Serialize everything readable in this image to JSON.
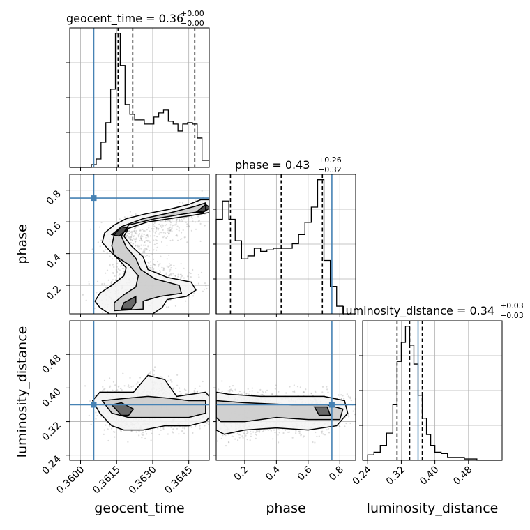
{
  "chart_data": {
    "type": "corner",
    "parameters": [
      "geocent_time",
      "phase",
      "luminosity_distance"
    ],
    "truths": {
      "geocent_time": 0.36055,
      "phase": 0.75,
      "luminosity_distance": 0.36
    },
    "truth_color": "#4682b4",
    "titles": [
      {
        "param": "geocent_time",
        "text": "geocent_time = 0.36",
        "upper": "+0.00",
        "lower": "−0.00"
      },
      {
        "param": "phase",
        "text": "phase = 0.43",
        "upper": "+0.26",
        "lower": "−0.32"
      },
      {
        "param": "luminosity_distance",
        "text": "luminosity_distance = 0.34",
        "upper": "+0.03",
        "lower": "−0.03"
      }
    ],
    "ranges": {
      "geocent_time": [
        0.35955,
        0.36535
      ],
      "phase": [
        0.02,
        0.9
      ],
      "luminosity_distance": [
        0.228,
        0.56
      ]
    },
    "ticks": {
      "geocent_time": [
        0.36,
        0.3615,
        0.363,
        0.3645
      ],
      "geocent_time_labels": [
        "0.3600",
        "0.3615",
        "0.3630",
        "0.3645"
      ],
      "phase": [
        0.2,
        0.4,
        0.6,
        0.8
      ],
      "phase_labels": [
        "0.2",
        "0.4",
        "0.6",
        "0.8"
      ],
      "luminosity_distance": [
        0.24,
        0.32,
        0.4,
        0.48
      ],
      "luminosity_distance_labels": [
        "0.24",
        "0.32",
        "0.40",
        "0.48"
      ]
    },
    "quantiles": {
      "geocent_time": [
        0.36156,
        0.36217,
        0.36475
      ],
      "phase": [
        0.11,
        0.43,
        0.69
      ],
      "luminosity_distance": [
        0.31,
        0.34,
        0.37
      ]
    },
    "histograms": {
      "geocent_time": {
        "edges": [
          0.35955,
          0.36045,
          0.36065,
          0.36085,
          0.36105,
          0.36125,
          0.36145,
          0.36165,
          0.36185,
          0.36205,
          0.36225,
          0.36245,
          0.36265,
          0.36285,
          0.36305,
          0.36325,
          0.36345,
          0.36365,
          0.36385,
          0.36405,
          0.36425,
          0.36445,
          0.36465,
          0.36485,
          0.36505,
          0.36535
        ],
        "counts": [
          0.0,
          0.02,
          0.06,
          0.18,
          0.32,
          0.56,
          0.96,
          0.73,
          0.45,
          0.38,
          0.34,
          0.34,
          0.31,
          0.31,
          0.36,
          0.39,
          0.41,
          0.33,
          0.31,
          0.26,
          0.31,
          0.32,
          0.31,
          0.21,
          0.05
        ]
      },
      "phase": {
        "edges": [
          0.02,
          0.06,
          0.1,
          0.14,
          0.18,
          0.22,
          0.26,
          0.3,
          0.34,
          0.38,
          0.42,
          0.46,
          0.5,
          0.54,
          0.58,
          0.62,
          0.66,
          0.7,
          0.74,
          0.78,
          0.82,
          0.86,
          0.9
        ],
        "counts": [
          0.62,
          0.74,
          0.62,
          0.48,
          0.36,
          0.38,
          0.43,
          0.41,
          0.42,
          0.43,
          0.43,
          0.43,
          0.46,
          0.52,
          0.6,
          0.7,
          0.88,
          0.35,
          0.18,
          0.05,
          0.0,
          0.0
        ]
      },
      "luminosity_distance": {
        "edges": [
          0.228,
          0.24,
          0.255,
          0.27,
          0.285,
          0.3,
          0.31,
          0.32,
          0.33,
          0.34,
          0.35,
          0.36,
          0.37,
          0.38,
          0.39,
          0.4,
          0.415,
          0.43,
          0.45,
          0.47,
          0.5,
          0.56
        ],
        "counts": [
          0.0,
          0.04,
          0.06,
          0.11,
          0.2,
          0.41,
          0.73,
          0.87,
          0.99,
          0.85,
          0.71,
          0.48,
          0.31,
          0.19,
          0.11,
          0.06,
          0.05,
          0.02,
          0.02,
          0.01,
          0.0
        ]
      }
    },
    "contours": {
      "phase_vs_geocent_time": {
        "outer": [
          [
            0.3612,
            0.02
          ],
          [
            0.3608,
            0.06
          ],
          [
            0.3606,
            0.1
          ],
          [
            0.3608,
            0.15
          ],
          [
            0.3613,
            0.2
          ],
          [
            0.3618,
            0.26
          ],
          [
            0.3619,
            0.31
          ],
          [
            0.3616,
            0.36
          ],
          [
            0.3612,
            0.42
          ],
          [
            0.3609,
            0.47
          ],
          [
            0.361,
            0.53
          ],
          [
            0.3614,
            0.58
          ],
          [
            0.3619,
            0.62
          ],
          [
            0.3627,
            0.65
          ],
          [
            0.3637,
            0.68
          ],
          [
            0.3645,
            0.71
          ],
          [
            0.365,
            0.74
          ],
          [
            0.3654,
            0.74
          ],
          [
            0.3654,
            0.66
          ],
          [
            0.3646,
            0.64
          ],
          [
            0.3637,
            0.62
          ],
          [
            0.3628,
            0.6
          ],
          [
            0.362,
            0.56
          ],
          [
            0.3618,
            0.51
          ],
          [
            0.3621,
            0.45
          ],
          [
            0.3626,
            0.38
          ],
          [
            0.3628,
            0.3
          ],
          [
            0.3636,
            0.25
          ],
          [
            0.3646,
            0.22
          ],
          [
            0.3648,
            0.17
          ],
          [
            0.3644,
            0.13
          ],
          [
            0.3636,
            0.11
          ],
          [
            0.3634,
            0.06
          ],
          [
            0.363,
            0.02
          ]
        ],
        "mid": [
          [
            0.3614,
            0.04
          ],
          [
            0.3614,
            0.09
          ],
          [
            0.3618,
            0.14
          ],
          [
            0.3623,
            0.19
          ],
          [
            0.3624,
            0.26
          ],
          [
            0.362,
            0.33
          ],
          [
            0.3614,
            0.39
          ],
          [
            0.3613,
            0.45
          ],
          [
            0.3614,
            0.52
          ],
          [
            0.3617,
            0.57
          ],
          [
            0.3626,
            0.62
          ],
          [
            0.3638,
            0.66
          ],
          [
            0.3648,
            0.7
          ],
          [
            0.3652,
            0.72
          ],
          [
            0.3652,
            0.67
          ],
          [
            0.3643,
            0.65
          ],
          [
            0.3631,
            0.62
          ],
          [
            0.362,
            0.58
          ],
          [
            0.3617,
            0.51
          ],
          [
            0.3619,
            0.44
          ],
          [
            0.3623,
            0.37
          ],
          [
            0.3625,
            0.3
          ],
          [
            0.3631,
            0.24
          ],
          [
            0.3641,
            0.2
          ],
          [
            0.3642,
            0.15
          ],
          [
            0.3633,
            0.13
          ],
          [
            0.3626,
            0.1
          ],
          [
            0.3626,
            0.05
          ]
        ],
        "inner": [
          [
            0.3617,
            0.05
          ],
          [
            0.3618,
            0.09
          ],
          [
            0.3623,
            0.13
          ],
          [
            0.3623,
            0.09
          ],
          [
            0.3621,
            0.05
          ]
        ],
        "inner2": [
          [
            0.3613,
            0.52
          ],
          [
            0.3617,
            0.57
          ],
          [
            0.362,
            0.56
          ],
          [
            0.3616,
            0.51
          ]
        ],
        "inner3": [
          [
            0.3648,
            0.66
          ],
          [
            0.3652,
            0.71
          ],
          [
            0.3654,
            0.69
          ],
          [
            0.3651,
            0.66
          ]
        ]
      },
      "luminosity_distance_vs_geocent_time": {
        "outer": [
          [
            0.3605,
            0.37
          ],
          [
            0.3608,
            0.34
          ],
          [
            0.3613,
            0.31
          ],
          [
            0.3618,
            0.3
          ],
          [
            0.3626,
            0.3
          ],
          [
            0.3635,
            0.31
          ],
          [
            0.3645,
            0.31
          ],
          [
            0.3652,
            0.32
          ],
          [
            0.3655,
            0.34
          ],
          [
            0.3655,
            0.37
          ],
          [
            0.3652,
            0.39
          ],
          [
            0.364,
            0.38
          ],
          [
            0.3635,
            0.42
          ],
          [
            0.3628,
            0.43
          ],
          [
            0.3622,
            0.39
          ],
          [
            0.3615,
            0.39
          ],
          [
            0.3608,
            0.39
          ]
        ],
        "mid": [
          [
            0.3609,
            0.37
          ],
          [
            0.3613,
            0.34
          ],
          [
            0.362,
            0.33
          ],
          [
            0.3633,
            0.33
          ],
          [
            0.3645,
            0.33
          ],
          [
            0.3652,
            0.34
          ],
          [
            0.3652,
            0.37
          ],
          [
            0.3645,
            0.37
          ],
          [
            0.3638,
            0.375
          ],
          [
            0.3628,
            0.38
          ],
          [
            0.3618,
            0.375
          ]
        ],
        "inner": [
          [
            0.3613,
            0.36
          ],
          [
            0.3617,
            0.335
          ],
          [
            0.362,
            0.335
          ],
          [
            0.3622,
            0.35
          ],
          [
            0.3617,
            0.365
          ]
        ]
      },
      "luminosity_distance_vs_phase": {
        "outer": [
          [
            0.02,
            0.39
          ],
          [
            0.1,
            0.385
          ],
          [
            0.3,
            0.38
          ],
          [
            0.5,
            0.38
          ],
          [
            0.7,
            0.38
          ],
          [
            0.83,
            0.37
          ],
          [
            0.85,
            0.34
          ],
          [
            0.78,
            0.31
          ],
          [
            0.6,
            0.3
          ],
          [
            0.4,
            0.305
          ],
          [
            0.2,
            0.3
          ],
          [
            0.07,
            0.29
          ],
          [
            0.02,
            0.3
          ]
        ],
        "mid": [
          [
            0.02,
            0.37
          ],
          [
            0.2,
            0.365
          ],
          [
            0.5,
            0.36
          ],
          [
            0.72,
            0.36
          ],
          [
            0.82,
            0.35
          ],
          [
            0.8,
            0.325
          ],
          [
            0.6,
            0.325
          ],
          [
            0.4,
            0.33
          ],
          [
            0.2,
            0.32
          ],
          [
            0.05,
            0.32
          ],
          [
            0.02,
            0.33
          ]
        ],
        "inner": [
          [
            0.64,
            0.355
          ],
          [
            0.72,
            0.355
          ],
          [
            0.74,
            0.335
          ],
          [
            0.67,
            0.335
          ]
        ]
      }
    },
    "axis_labels": [
      "geocent_time",
      "phase",
      "luminosity_distance"
    ]
  }
}
